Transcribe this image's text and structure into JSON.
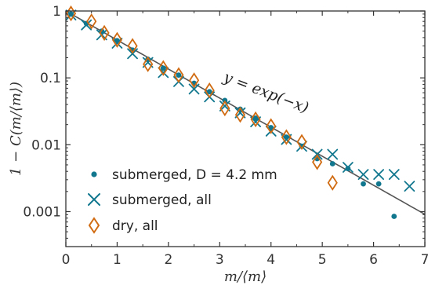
{
  "chart_data": {
    "type": "scatter",
    "title": "",
    "xlabel": "m/⟨m⟩",
    "ylabel": "1 − C(m/⟨m⟩)",
    "xlim": [
      0,
      7
    ],
    "ylim": [
      0.0003,
      1
    ],
    "yscale": "log",
    "grid": false,
    "legend_position": "lower-left",
    "x_ticks": [
      0,
      1,
      2,
      3,
      4,
      5,
      6,
      7
    ],
    "x_tick_labels": [
      "0",
      "1",
      "2",
      "3",
      "4",
      "5",
      "6",
      "7"
    ],
    "y_ticks": [
      0.001,
      0.01,
      0.1,
      1
    ],
    "y_tick_labels": [
      "0.001",
      "0.01",
      "0.1",
      "1"
    ],
    "annotation": "y = exp(−x)",
    "reference_line": {
      "label": "y = exp(−x)",
      "color": "#555555"
    },
    "series": [
      {
        "name": "submerged, D = 4.2 mm",
        "marker": "dot",
        "color": "#11778e",
        "points": [
          [
            0.1,
            0.9
          ],
          [
            0.4,
            0.65
          ],
          [
            0.7,
            0.5
          ],
          [
            1.0,
            0.36
          ],
          [
            1.3,
            0.26
          ],
          [
            1.6,
            0.19
          ],
          [
            1.9,
            0.14
          ],
          [
            2.2,
            0.11
          ],
          [
            2.5,
            0.083
          ],
          [
            2.8,
            0.062
          ],
          [
            3.1,
            0.046
          ],
          [
            3.4,
            0.034
          ],
          [
            3.7,
            0.025
          ],
          [
            4.0,
            0.018
          ],
          [
            4.3,
            0.013
          ],
          [
            4.6,
            0.0095
          ],
          [
            4.9,
            0.0062
          ],
          [
            5.2,
            0.0052
          ],
          [
            5.5,
            0.0044
          ],
          [
            5.8,
            0.0026
          ],
          [
            6.1,
            0.0026
          ],
          [
            6.4,
            0.00085
          ]
        ]
      },
      {
        "name": "submerged, all",
        "marker": "x",
        "color": "#11778e",
        "points": [
          [
            0.1,
            0.87
          ],
          [
            0.4,
            0.62
          ],
          [
            0.7,
            0.44
          ],
          [
            1.0,
            0.33
          ],
          [
            1.3,
            0.23
          ],
          [
            1.6,
            0.17
          ],
          [
            1.9,
            0.12
          ],
          [
            2.2,
            0.088
          ],
          [
            2.5,
            0.068
          ],
          [
            2.8,
            0.052
          ],
          [
            3.1,
            0.038
          ],
          [
            3.4,
            0.03
          ],
          [
            3.7,
            0.022
          ],
          [
            4.0,
            0.016
          ],
          [
            4.3,
            0.012
          ],
          [
            4.6,
            0.0095
          ],
          [
            4.9,
            0.0072
          ],
          [
            5.2,
            0.0072
          ],
          [
            5.5,
            0.0046
          ],
          [
            5.8,
            0.0036
          ],
          [
            6.1,
            0.0036
          ],
          [
            6.4,
            0.0036
          ],
          [
            6.7,
            0.0024
          ]
        ]
      },
      {
        "name": "dry, all",
        "marker": "diamond",
        "color": "#d06b12",
        "points": [
          [
            0.1,
            0.92
          ],
          [
            0.5,
            0.7
          ],
          [
            0.75,
            0.47
          ],
          [
            1.0,
            0.37
          ],
          [
            1.3,
            0.3
          ],
          [
            1.6,
            0.16
          ],
          [
            1.9,
            0.14
          ],
          [
            2.2,
            0.11
          ],
          [
            2.5,
            0.092
          ],
          [
            2.8,
            0.065
          ],
          [
            3.1,
            0.035
          ],
          [
            3.4,
            0.028
          ],
          [
            3.7,
            0.024
          ],
          [
            4.0,
            0.019
          ],
          [
            4.3,
            0.013
          ],
          [
            4.6,
            0.011
          ],
          [
            4.9,
            0.0055
          ],
          [
            5.2,
            0.0027
          ]
        ]
      }
    ]
  }
}
